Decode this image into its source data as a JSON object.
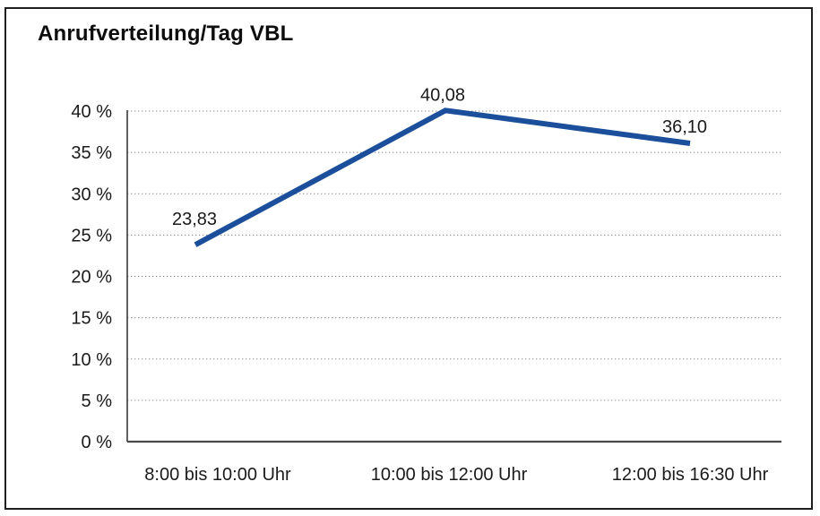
{
  "chart_data": {
    "type": "line",
    "title": "Anrufverteilung/Tag VBL",
    "categories": [
      "8:00 bis 10:00 Uhr",
      "10:00 bis 12:00 Uhr",
      "12:00 bis 16:30 Uhr"
    ],
    "series": [
      {
        "name": "Anrufverteilung/Tag VBL",
        "values": [
          23.83,
          40.08,
          36.1
        ]
      }
    ],
    "point_labels": [
      "23,83",
      "40,08",
      "36,10"
    ],
    "ylabel": "",
    "xlabel": "",
    "ylim": [
      0,
      40
    ],
    "ytick_values": [
      0,
      5,
      10,
      15,
      20,
      25,
      30,
      35,
      40
    ],
    "ytick_labels": [
      "0 %",
      "5 %",
      "10 %",
      "15 %",
      "20 %",
      "25 %",
      "30 %",
      "35 %",
      "40 %"
    ],
    "grid": "horizontal-dotted",
    "legend_position": "none",
    "colors": {
      "line": "#1b4f9b",
      "gridline": "#8f8f8f",
      "axis": "#3a3a3a",
      "text": "#1a1a1a",
      "frame_border": "#1f1f1f",
      "background": "#ffffff"
    }
  }
}
